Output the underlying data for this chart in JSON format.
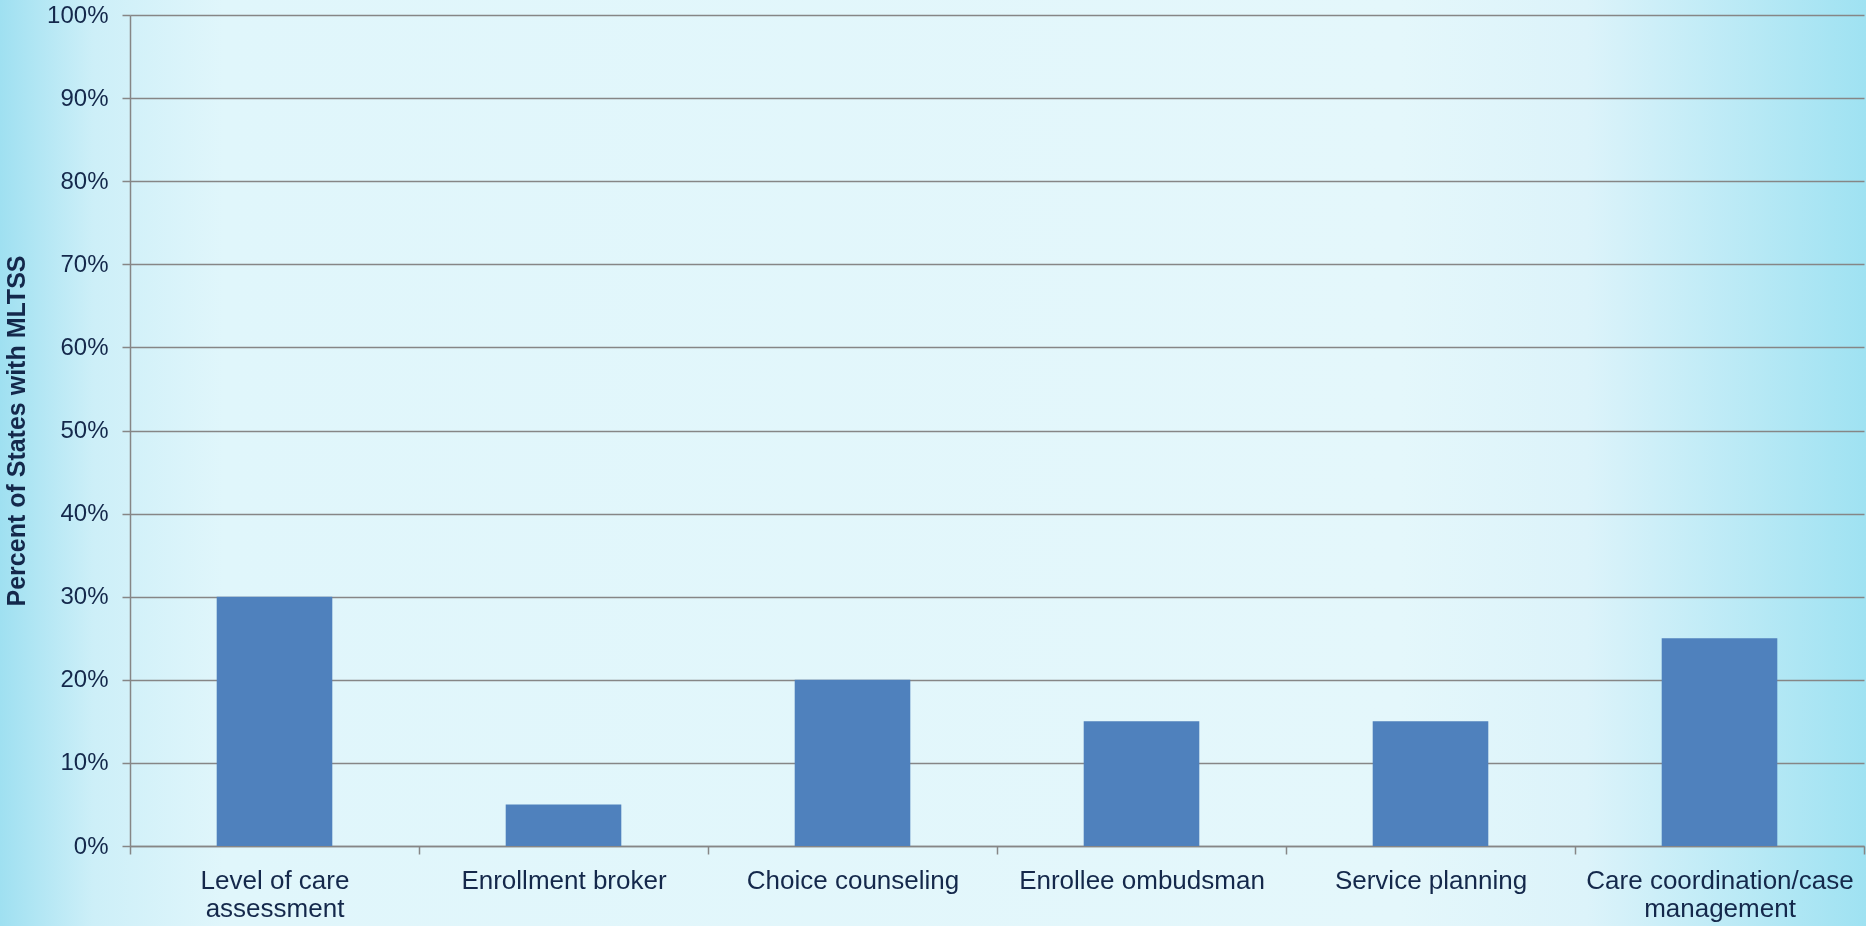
{
  "chart_data": {
    "type": "bar",
    "ylabel": "Percent of States with MLTSS",
    "categories": [
      "Level of care assessment",
      "Enrollment broker",
      "Choice counseling",
      "Enrollee ombudsman",
      "Service planning",
      "Care coordination/case management"
    ],
    "values": [
      30,
      5,
      20,
      15,
      15,
      25
    ],
    "color": "#4f81bd",
    "ylim": [
      0,
      100
    ],
    "yticks": [
      {
        "value": 0,
        "label": "0%"
      },
      {
        "value": 10,
        "label": "10%"
      },
      {
        "value": 20,
        "label": "20%"
      },
      {
        "value": 30,
        "label": "30%"
      },
      {
        "value": 40,
        "label": "40%"
      },
      {
        "value": 50,
        "label": "50%"
      },
      {
        "value": 60,
        "label": "60%"
      },
      {
        "value": 70,
        "label": "70%"
      },
      {
        "value": 80,
        "label": "80%"
      },
      {
        "value": 90,
        "label": "90%"
      },
      {
        "value": 100,
        "label": "100%"
      }
    ],
    "grid": "y"
  }
}
